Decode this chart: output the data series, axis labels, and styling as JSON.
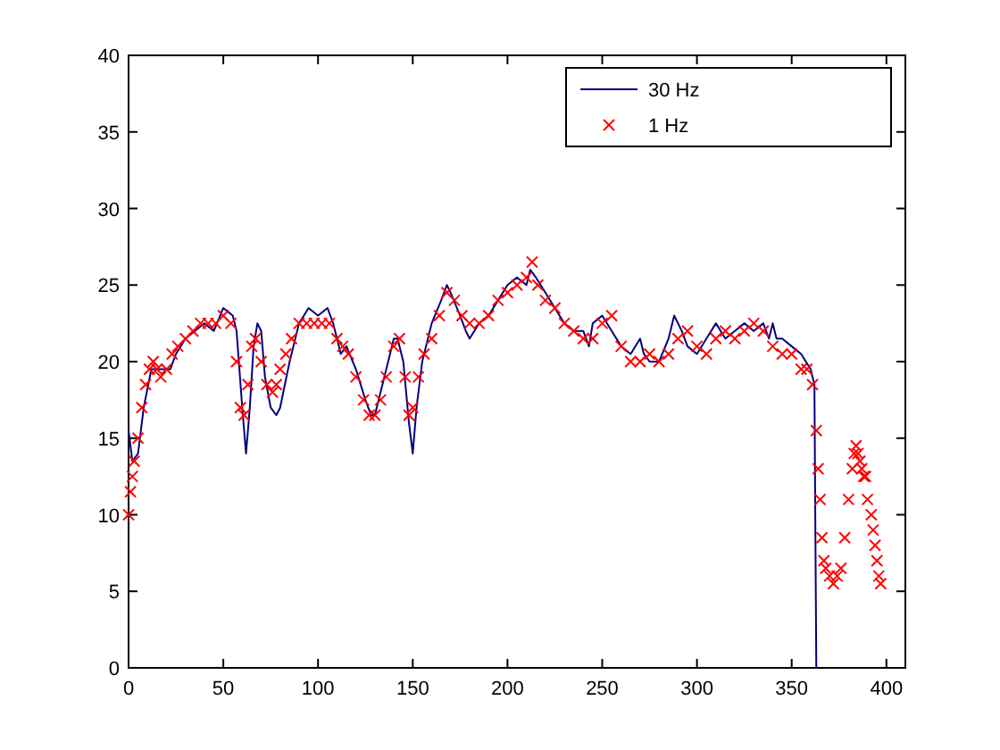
{
  "chart_data": {
    "type": "line",
    "xlim": [
      0,
      410
    ],
    "ylim": [
      0,
      40
    ],
    "xticks": [
      0,
      50,
      100,
      150,
      200,
      250,
      300,
      350,
      400
    ],
    "yticks": [
      0,
      5,
      10,
      15,
      20,
      25,
      30,
      35,
      40
    ],
    "grid": false,
    "legend": "top right",
    "series": [
      {
        "name": "30 Hz",
        "color": "#000080",
        "marker": "none",
        "x": [
          0,
          2,
          5,
          8,
          12,
          15,
          18,
          22,
          25,
          30,
          35,
          40,
          45,
          50,
          55,
          57,
          60,
          62,
          64,
          66,
          68,
          70,
          72,
          75,
          78,
          80,
          85,
          90,
          95,
          100,
          105,
          108,
          110,
          112,
          115,
          120,
          125,
          128,
          130,
          135,
          140,
          142,
          145,
          148,
          150,
          152,
          155,
          158,
          160,
          165,
          168,
          170,
          175,
          178,
          180,
          185,
          190,
          195,
          200,
          205,
          210,
          212,
          215,
          220,
          225,
          230,
          235,
          240,
          243,
          245,
          250,
          255,
          260,
          265,
          270,
          272,
          275,
          280,
          285,
          288,
          292,
          295,
          300,
          305,
          310,
          315,
          320,
          325,
          330,
          335,
          338,
          340,
          342,
          345,
          350,
          355,
          360,
          362,
          363
        ],
        "values": [
          15.5,
          13.5,
          14,
          17,
          19.5,
          19.5,
          19.5,
          19.5,
          20.5,
          21.5,
          22,
          22.5,
          22,
          23.5,
          23,
          22,
          17,
          14,
          17,
          21,
          22.5,
          22,
          19,
          17,
          16.5,
          17,
          20,
          22.5,
          23.5,
          23,
          23.5,
          22.5,
          21.5,
          20.5,
          21,
          19.5,
          17.5,
          16.5,
          16.5,
          19,
          21.5,
          21.5,
          20,
          16,
          14,
          17,
          20,
          21.5,
          22.5,
          24,
          25,
          24.5,
          23,
          22,
          21.5,
          22.5,
          23,
          24,
          25,
          25.5,
          25,
          26,
          25.5,
          24.5,
          23.5,
          22.5,
          22,
          22,
          21,
          22.5,
          23,
          22,
          21,
          20.5,
          21.5,
          20.5,
          20,
          20,
          21.5,
          23,
          22,
          21,
          20.5,
          21.5,
          22.5,
          21.5,
          22,
          22.5,
          22,
          22.5,
          21.5,
          22.5,
          21.5,
          21.5,
          21,
          20.5,
          19.5,
          18.5,
          0
        ]
      },
      {
        "name": "1 Hz",
        "type": "scatter",
        "color": "#ff0000",
        "marker": "cross",
        "x": [
          0,
          1,
          2,
          3,
          5,
          7,
          9,
          11,
          13,
          15,
          17,
          20,
          23,
          26,
          30,
          34,
          38,
          42,
          46,
          50,
          54,
          57,
          59,
          61,
          63,
          65,
          67,
          70,
          73,
          76,
          78,
          80,
          83,
          86,
          90,
          94,
          98,
          102,
          106,
          110,
          113,
          116,
          120,
          124,
          127,
          130,
          133,
          136,
          140,
          143,
          146,
          148,
          150,
          153,
          156,
          160,
          164,
          168,
          172,
          176,
          180,
          185,
          190,
          195,
          200,
          205,
          210,
          213,
          216,
          220,
          225,
          230,
          235,
          240,
          245,
          250,
          255,
          260,
          265,
          270,
          275,
          280,
          285,
          290,
          295,
          300,
          305,
          310,
          315,
          320,
          325,
          330,
          335,
          340,
          345,
          350,
          355,
          358,
          361,
          363,
          364,
          365,
          366,
          367,
          368,
          370,
          372,
          374,
          376,
          378,
          380,
          382,
          383,
          384,
          385,
          386,
          387,
          388,
          389,
          390,
          392,
          393,
          394,
          395,
          396,
          397
        ],
        "values": [
          10,
          11.5,
          12.5,
          13.5,
          15,
          17,
          18.5,
          19.5,
          20,
          19.5,
          19,
          19.5,
          20.5,
          21,
          21.5,
          22,
          22.5,
          22.5,
          22.5,
          23,
          22.5,
          20,
          17,
          16.5,
          18.5,
          21,
          21.5,
          20,
          18.5,
          18,
          18.5,
          19.5,
          20.5,
          21.5,
          22.5,
          22.5,
          22.5,
          22.5,
          22.5,
          21.5,
          21,
          20.5,
          19,
          17.5,
          16.5,
          16.5,
          17.5,
          19,
          21,
          21.5,
          19,
          16.5,
          17,
          19,
          20.5,
          21.5,
          23,
          24.5,
          24,
          23,
          22.5,
          22.5,
          23,
          24,
          24.5,
          25,
          25.5,
          26.5,
          25,
          24,
          23.5,
          22.5,
          22,
          21.5,
          21.5,
          22.5,
          23,
          21,
          20,
          20,
          20.5,
          20,
          20.5,
          21.5,
          22,
          21,
          20.5,
          21.5,
          22,
          21.5,
          22,
          22.5,
          22,
          21,
          20.5,
          20.5,
          19.5,
          19.5,
          18.5,
          15.5,
          13,
          11,
          8.5,
          7,
          6.5,
          6,
          5.5,
          6,
          6.5,
          8.5,
          11,
          13,
          14,
          14.5,
          14,
          13.5,
          13,
          12.5,
          12.5,
          11,
          10,
          9,
          8,
          7,
          6,
          5.5
        ]
      }
    ]
  }
}
